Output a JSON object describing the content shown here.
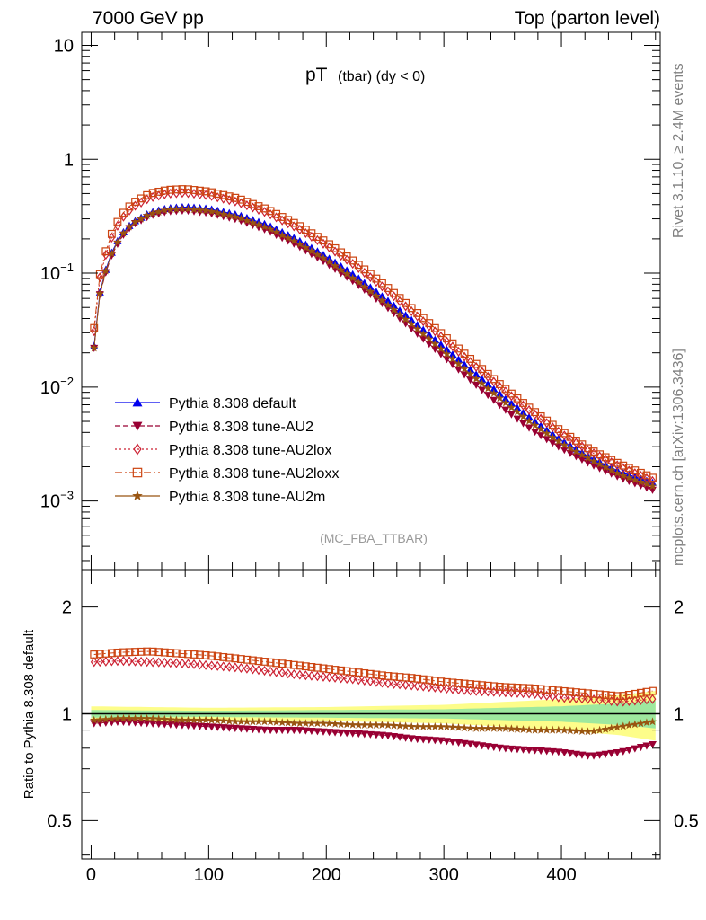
{
  "header": {
    "left": "7000 GeV pp",
    "right": "Top (parton level)"
  },
  "side_labels": {
    "rivet": "Rivet 3.1.10, ≥ 2.4M events",
    "mcplots": "mcplots.cern.ch [arXiv:1306.3436]"
  },
  "chart_data": [
    {
      "type": "line",
      "title": "pT",
      "title_sub": "(tbar) (dy < 0)",
      "annotation": "(MC_FBA_TTBAR)",
      "yscale": "log",
      "xlim": [
        -8,
        484
      ],
      "ylim": [
        0.00025,
        13
      ],
      "ytick_labels": [
        {
          "value": 10,
          "base": "10",
          "exp": ""
        },
        {
          "value": 1,
          "base": "1",
          "exp": ""
        },
        {
          "value": 0.1,
          "base": "10",
          "exp": "−1"
        },
        {
          "value": 0.01,
          "base": "10",
          "exp": "−2"
        },
        {
          "value": 0.001,
          "base": "10",
          "exp": "−3"
        }
      ],
      "legend_position": "bottom-left",
      "series": [
        {
          "name": "Pythia 8.308 default",
          "color": "#0000ee",
          "marker": "triangle-up",
          "linestyle": "solid",
          "x": [
            2.5,
            7.5,
            15,
            25,
            35,
            50,
            65,
            80,
            100,
            125,
            150,
            175,
            200,
            225,
            250,
            275,
            300,
            325,
            350,
            375,
            400,
            425,
            450,
            477.5
          ],
          "y": [
            0.023,
            0.068,
            0.135,
            0.215,
            0.278,
            0.34,
            0.372,
            0.382,
            0.368,
            0.325,
            0.265,
            0.198,
            0.14,
            0.094,
            0.06,
            0.037,
            0.0225,
            0.0136,
            0.0083,
            0.0052,
            0.0034,
            0.0024,
            0.0018,
            0.00145
          ]
        },
        {
          "name": "Pythia 8.308 tune-AU2",
          "color": "#990033",
          "marker": "triangle-down",
          "linestyle": "dashed",
          "x": [
            2.5,
            7.5,
            15,
            25,
            35,
            50,
            65,
            80,
            100,
            125,
            150,
            175,
            200,
            225,
            250,
            275,
            300,
            325,
            350,
            375,
            400,
            425,
            450,
            477.5
          ],
          "y": [
            0.022,
            0.065,
            0.127,
            0.203,
            0.265,
            0.32,
            0.348,
            0.355,
            0.338,
            0.295,
            0.237,
            0.176,
            0.123,
            0.082,
            0.052,
            0.031,
            0.0185,
            0.011,
            0.0066,
            0.0042,
            0.0029,
            0.0021,
            0.0016,
            0.00125
          ]
        },
        {
          "name": "Pythia 8.308 tune-AU2lox",
          "color": "#cc2233",
          "marker": "diamond-open",
          "linestyle": "dotted",
          "x": [
            2.5,
            7.5,
            15,
            25,
            35,
            50,
            65,
            80,
            100,
            125,
            150,
            175,
            200,
            225,
            250,
            275,
            300,
            325,
            350,
            375,
            400,
            425,
            450,
            477.5
          ],
          "y": [
            0.031,
            0.092,
            0.182,
            0.294,
            0.378,
            0.46,
            0.498,
            0.508,
            0.482,
            0.42,
            0.338,
            0.25,
            0.175,
            0.116,
            0.073,
            0.044,
            0.0265,
            0.0158,
            0.0096,
            0.006,
            0.0039,
            0.0027,
            0.002,
            0.0015
          ]
        },
        {
          "name": "Pythia 8.308 tune-AU2loxx",
          "color": "#cc4411",
          "marker": "square-open",
          "linestyle": "dashdot",
          "x": [
            2.5,
            7.5,
            15,
            25,
            35,
            50,
            65,
            80,
            100,
            125,
            150,
            175,
            200,
            225,
            250,
            275,
            300,
            325,
            350,
            375,
            400,
            425,
            450,
            477.5
          ],
          "y": [
            0.033,
            0.098,
            0.196,
            0.318,
            0.41,
            0.5,
            0.538,
            0.548,
            0.52,
            0.452,
            0.362,
            0.268,
            0.187,
            0.124,
            0.078,
            0.047,
            0.0283,
            0.0168,
            0.0101,
            0.0063,
            0.0041,
            0.0028,
            0.0021,
            0.0016
          ]
        },
        {
          "name": "Pythia 8.308 tune-AU2m",
          "color": "#995511",
          "marker": "star",
          "linestyle": "solid",
          "x": [
            2.5,
            7.5,
            15,
            25,
            35,
            50,
            65,
            80,
            100,
            125,
            150,
            175,
            200,
            225,
            250,
            275,
            300,
            325,
            350,
            375,
            400,
            425,
            450,
            477.5
          ],
          "y": [
            0.022,
            0.066,
            0.132,
            0.21,
            0.272,
            0.33,
            0.36,
            0.368,
            0.352,
            0.308,
            0.25,
            0.186,
            0.131,
            0.087,
            0.055,
            0.034,
            0.0205,
            0.0124,
            0.0076,
            0.0048,
            0.0032,
            0.0023,
            0.0017,
            0.00135
          ]
        }
      ]
    },
    {
      "type": "line",
      "ylabel": "Ratio to Pythia 8.308 default",
      "yscale": "log",
      "xlim": [
        -8,
        484
      ],
      "ylim": [
        0.39,
        2.55
      ],
      "ytick_labels": [
        "2",
        "1",
        "0.5"
      ],
      "xtick_labels": [
        "0",
        "100",
        "200",
        "300",
        "400"
      ],
      "reference_line": 1,
      "uncertainty_band": {
        "x": [
          0,
          100,
          200,
          300,
          350,
          400,
          450,
          480
        ],
        "inner": [
          0.025,
          0.02,
          0.025,
          0.03,
          0.04,
          0.05,
          0.07,
          0.09
        ],
        "outer": [
          0.05,
          0.04,
          0.045,
          0.06,
          0.08,
          0.1,
          0.13,
          0.16
        ]
      },
      "series": [
        {
          "name": "Pythia 8.308 tune-AU2",
          "x": [
            2.5,
            25,
            50,
            75,
            100,
            125,
            150,
            175,
            200,
            225,
            250,
            275,
            300,
            325,
            350,
            375,
            400,
            425,
            450,
            477.5
          ],
          "y": [
            0.94,
            0.95,
            0.94,
            0.93,
            0.92,
            0.91,
            0.9,
            0.9,
            0.89,
            0.88,
            0.87,
            0.85,
            0.84,
            0.82,
            0.8,
            0.79,
            0.78,
            0.76,
            0.78,
            0.82
          ]
        },
        {
          "name": "Pythia 8.308 tune-AU2lox",
          "x": [
            2.5,
            25,
            50,
            75,
            100,
            125,
            150,
            175,
            200,
            225,
            250,
            275,
            300,
            325,
            350,
            375,
            400,
            425,
            450,
            477.5
          ],
          "y": [
            1.4,
            1.41,
            1.4,
            1.39,
            1.37,
            1.35,
            1.32,
            1.29,
            1.27,
            1.25,
            1.22,
            1.2,
            1.18,
            1.16,
            1.15,
            1.14,
            1.11,
            1.1,
            1.08,
            1.1
          ]
        },
        {
          "name": "Pythia 8.308 tune-AU2loxx",
          "x": [
            2.5,
            25,
            50,
            75,
            100,
            125,
            150,
            175,
            200,
            225,
            250,
            275,
            300,
            325,
            350,
            375,
            400,
            425,
            450,
            477.5
          ],
          "y": [
            1.47,
            1.49,
            1.5,
            1.48,
            1.46,
            1.43,
            1.4,
            1.37,
            1.34,
            1.31,
            1.28,
            1.26,
            1.23,
            1.21,
            1.19,
            1.18,
            1.16,
            1.14,
            1.12,
            1.16
          ]
        },
        {
          "name": "Pythia 8.308 tune-AU2m",
          "x": [
            2.5,
            25,
            50,
            75,
            100,
            125,
            150,
            175,
            200,
            225,
            250,
            275,
            300,
            325,
            350,
            375,
            400,
            425,
            450,
            477.5
          ],
          "y": [
            0.96,
            0.97,
            0.97,
            0.96,
            0.96,
            0.95,
            0.95,
            0.94,
            0.94,
            0.93,
            0.93,
            0.92,
            0.92,
            0.91,
            0.91,
            0.9,
            0.9,
            0.89,
            0.92,
            0.95
          ]
        }
      ]
    }
  ]
}
